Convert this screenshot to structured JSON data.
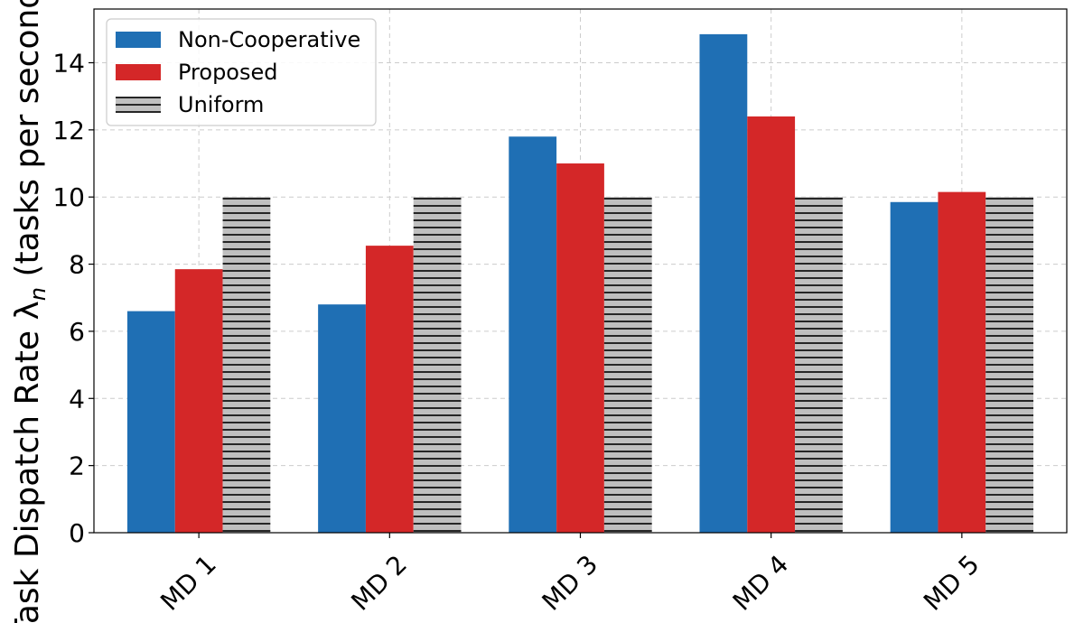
{
  "chart_data": {
    "type": "bar",
    "title": "",
    "xlabel": "",
    "ylabel": "Task Dispatch Rate λ",
    "ylabel_subscript": "n",
    "ylabel_suffix": " (tasks per second)",
    "categories": [
      "MD 1",
      "MD 2",
      "MD 3",
      "MD 4",
      "MD 5"
    ],
    "series": [
      {
        "name": "Non-Cooperative",
        "values": [
          6.6,
          6.8,
          11.8,
          14.85,
          9.85
        ],
        "color": "#1f6fb4",
        "pattern": "solid"
      },
      {
        "name": "Proposed",
        "values": [
          7.85,
          8.55,
          11.0,
          12.4,
          10.15
        ],
        "color": "#d42728",
        "pattern": "solid"
      },
      {
        "name": "Uniform",
        "values": [
          10.0,
          10.0,
          10.0,
          10.0,
          10.0
        ],
        "color": "#bfbfbf",
        "pattern": "horizontal-hatch"
      }
    ],
    "ylim": [
      0,
      15.6
    ],
    "yticks": [
      0,
      2,
      4,
      6,
      8,
      10,
      12,
      14
    ],
    "grid": true,
    "legend_position": "top-left"
  }
}
